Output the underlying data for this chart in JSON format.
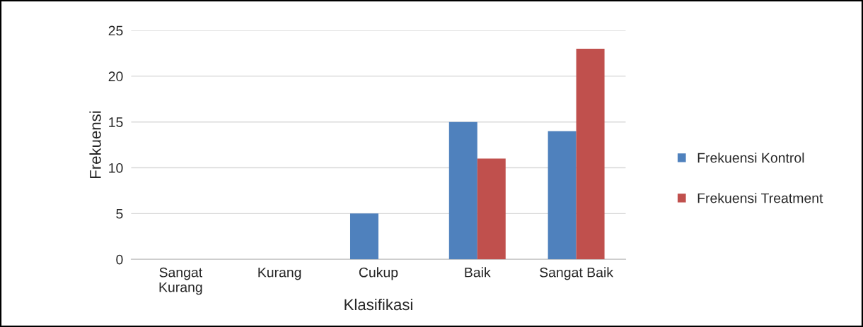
{
  "chart_data": {
    "type": "bar",
    "xlabel": "Klasifikasi",
    "ylabel": "Frekuensi",
    "categories": [
      "Sangat\nKurang",
      "Kurang",
      "Cukup",
      "Baik",
      "Sangat Baik"
    ],
    "series": [
      {
        "name": "Frekuensi Kontrol",
        "color": "#4f81bd",
        "values": [
          0,
          0,
          5,
          15,
          14
        ]
      },
      {
        "name": "Frekuensi Treatment",
        "color": "#c0504d",
        "values": [
          0,
          0,
          0,
          11,
          23
        ]
      }
    ],
    "ylim": [
      0,
      25
    ],
    "yticks": [
      0,
      5,
      10,
      15,
      20,
      25
    ],
    "grid": "y",
    "legend": "right"
  }
}
